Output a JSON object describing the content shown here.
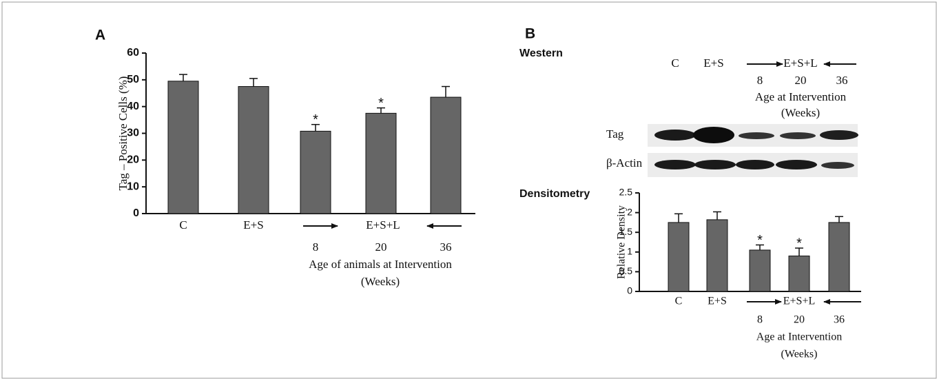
{
  "chart_data": [
    {
      "type": "bar",
      "panel": "A",
      "ylabel": "Tag – Positive Cells (%)",
      "categories": [
        "C",
        "E+S",
        "8",
        "20",
        "36"
      ],
      "group_label": "E+S+L",
      "values": [
        49.5,
        47.5,
        30.8,
        37.5,
        43.5
      ],
      "errors": [
        2.5,
        3,
        2.5,
        2,
        4
      ],
      "color": "#666666",
      "ylim": [
        0,
        60
      ],
      "yticks": [
        0,
        10,
        20,
        30,
        40,
        50,
        60
      ],
      "annotations": [
        {
          "index": 2,
          "text": "*"
        },
        {
          "index": 3,
          "text": "*"
        }
      ],
      "xlabel": [
        "Age of animals at Intervention",
        "(Weeks)"
      ]
    },
    {
      "type": "bar",
      "panel": "Densitometry",
      "ylabel": "Relative Density",
      "categories": [
        "C",
        "E+S",
        "8",
        "20",
        "36"
      ],
      "group_label": "E+S+L",
      "values": [
        1.75,
        1.82,
        1.05,
        0.9,
        1.75
      ],
      "errors": [
        0.22,
        0.2,
        0.13,
        0.2,
        0.15
      ],
      "color": "#666666",
      "ylim": [
        0,
        2.5
      ],
      "yticks": [
        0,
        0.5,
        1,
        1.5,
        2,
        2.5
      ],
      "annotations": [
        {
          "index": 2,
          "text": "*"
        },
        {
          "index": 3,
          "text": "*"
        }
      ],
      "xlabel": [
        "Age at Intervention",
        "(Weeks)"
      ]
    }
  ],
  "western": {
    "panel": "B",
    "title": "Western",
    "lanes": [
      "C",
      "E+S",
      "8",
      "20",
      "36"
    ],
    "group_label": "E+S+L",
    "xlabel": [
      "Age at Intervention",
      "(Weeks)"
    ],
    "rows": [
      "Tag",
      "β-Actin"
    ]
  }
}
